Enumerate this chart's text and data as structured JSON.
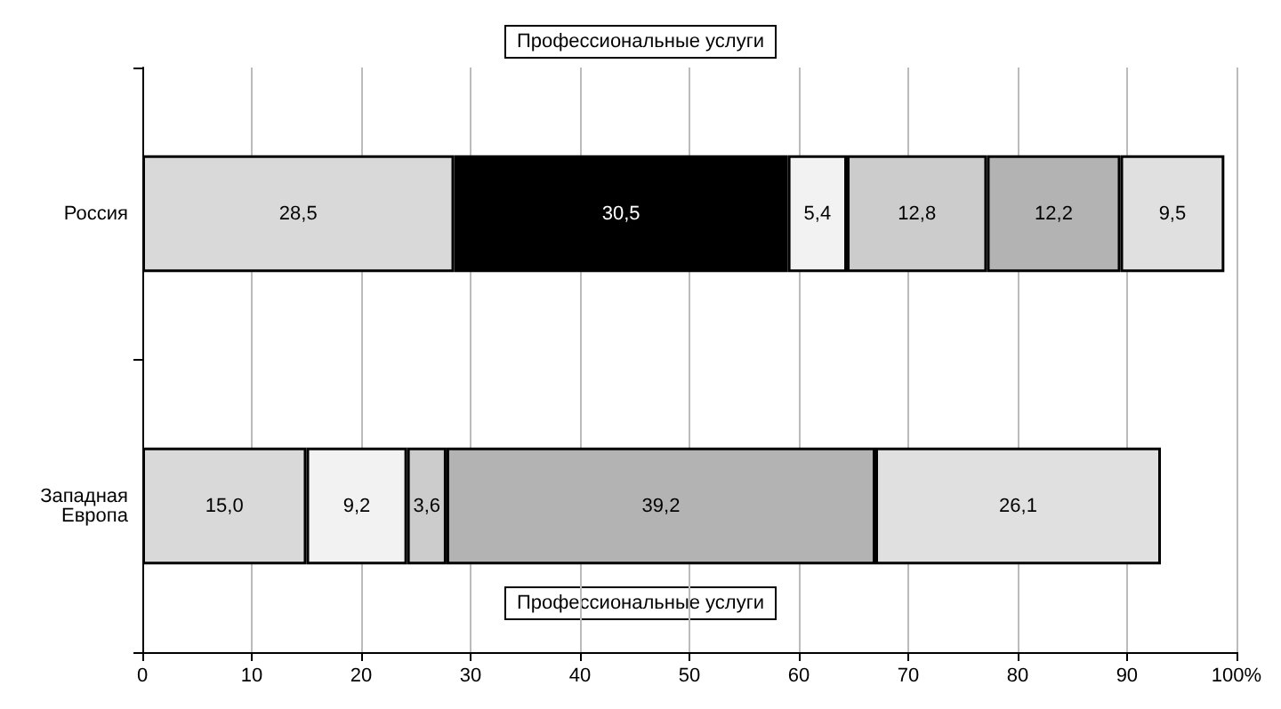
{
  "chart_data": {
    "type": "bar",
    "orientation": "horizontal",
    "stacked": true,
    "categories": [
      "Россия",
      "Западная Европа"
    ],
    "series": [
      {
        "color": "#d9d9d9",
        "values": [
          28.5,
          15.0
        ],
        "value_labels": [
          "28,5",
          "15,0"
        ]
      },
      {
        "color": "#000000",
        "values": [
          30.5,
          null
        ],
        "value_labels": [
          "30,5",
          null
        ]
      },
      {
        "color": "#f2f2f2",
        "values": [
          5.4,
          9.2
        ],
        "value_labels": [
          "5,4",
          "9,2"
        ]
      },
      {
        "color": "#cccccc",
        "values": [
          12.8,
          3.6
        ],
        "value_labels": [
          "12,8",
          "3,6"
        ]
      },
      {
        "color": "#b3b3b3",
        "values": [
          12.2,
          39.2
        ],
        "value_labels": [
          "12,2",
          "39,2"
        ]
      },
      {
        "color": "#e0e0e0",
        "values": [
          9.5,
          26.1
        ],
        "value_labels": [
          "9,5",
          "26,1"
        ]
      }
    ],
    "xlim": [
      0,
      100
    ],
    "xticks": [
      0,
      10,
      20,
      30,
      40,
      50,
      60,
      70,
      80,
      90,
      {
        "value": 100,
        "label": "100%"
      }
    ],
    "grid": "x",
    "annotations": [
      "Профессиональные услуги",
      "Профессиональные услуги"
    ]
  }
}
